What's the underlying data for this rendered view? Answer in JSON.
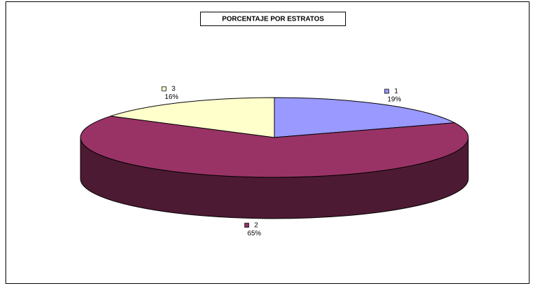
{
  "chart_data": {
    "type": "pie3d",
    "title": "PORCENTAJE POR ESTRATOS",
    "categories": [
      "1",
      "2",
      "3"
    ],
    "values": [
      19,
      65,
      16
    ],
    "value_labels": [
      "19%",
      "65%",
      "16%"
    ],
    "colors": [
      "#9999ff",
      "#993366",
      "#ffffcc"
    ]
  }
}
